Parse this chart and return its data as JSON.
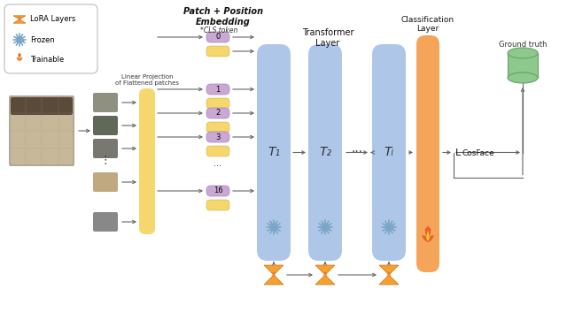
{
  "bg_color": "#ffffff",
  "patch_colors": {
    "yellow_proj": "#F5D76E",
    "purple_token": "#C9A9D4",
    "yellow_token": "#F5D76E",
    "blue_transformer": "#AEC6E8",
    "orange_class": "#F5A55A",
    "green_db": "#90C990",
    "snowflake_blue": "#7AA5C8",
    "flame_orange": "#E8632A"
  },
  "legend_items": [
    "LoRA Layers",
    "Frozen",
    "Trainable"
  ],
  "patch_label": "Patch + Position\nEmbedding",
  "cls_token_label": "*CLS token",
  "transformer_label": "Transformer\nLayer",
  "classification_label": "Classification\nLayer",
  "ground_truth_label": "Ground truth",
  "linear_proj_label": "Linear Projection\nof Flattened patches",
  "cosface_label": "CosFace",
  "transformer_labels": [
    "T₁",
    "T₂",
    "Tₗ"
  ]
}
